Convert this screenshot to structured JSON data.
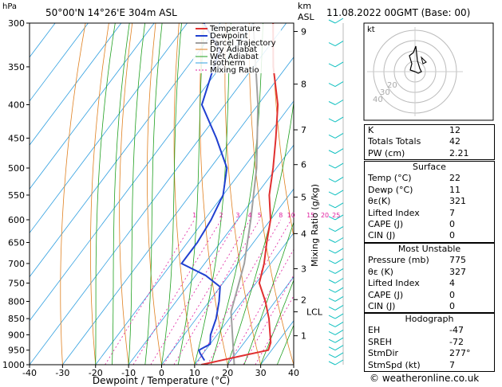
{
  "header": {
    "location": "50°00'N 14°26'E 304m ASL",
    "datetime": "11.08.2022 00GMT (Base: 00)"
  },
  "chart_data": {
    "type": "skew-t",
    "xlabel": "Dewpoint / Temperature (°C)",
    "ylabel_left": "hPa",
    "ylabel_right_top": "km",
    "ylabel_right_top2": "ASL",
    "mixing_ratio_label": "Mixing Ratio (g/kg)",
    "pressure_ticks": [
      300,
      350,
      400,
      450,
      500,
      550,
      600,
      650,
      700,
      750,
      800,
      850,
      900,
      950,
      1000
    ],
    "temp_ticks": [
      -40,
      -30,
      -20,
      -10,
      0,
      10,
      20,
      30,
      40
    ],
    "km_ticks": [
      {
        "label": "9",
        "p": 309
      },
      {
        "label": "8",
        "p": 372
      },
      {
        "label": "7",
        "p": 437
      },
      {
        "label": "6",
        "p": 494
      },
      {
        "label": "5",
        "p": 554
      },
      {
        "label": "4",
        "p": 630
      },
      {
        "label": "3",
        "p": 713
      },
      {
        "label": "2",
        "p": 795
      },
      {
        "label": "1",
        "p": 903
      }
    ],
    "lcl_label": "LCL",
    "lcl_p": 830,
    "mixing_ratio_values": [
      "1",
      "2",
      "3",
      "4",
      "5",
      "8",
      "10",
      "15",
      "20",
      "25"
    ],
    "legend": [
      "Temperature",
      "Dewpoint",
      "Parcel Trajectory",
      "Dry Adiabat",
      "Wet Adiabat",
      "Isotherm",
      "Mixing Ratio"
    ],
    "colors": {
      "temperature": "#e03030",
      "dewpoint": "#2040d0",
      "parcel": "#a0a0a0",
      "dry_adiabat": "#e08020",
      "wet_adiabat": "#20a020",
      "isotherm": "#30a0e0",
      "mixing_ratio": "#e020a0",
      "wind": "#10c0c0"
    },
    "temperature_profile": [
      {
        "p": 1000,
        "x": 12
      },
      {
        "p": 970,
        "x": 22
      },
      {
        "p": 950,
        "x": 29
      },
      {
        "p": 925,
        "x": 28
      },
      {
        "p": 850,
        "x": 22
      },
      {
        "p": 800,
        "x": 17
      },
      {
        "p": 750,
        "x": 11
      },
      {
        "p": 700,
        "x": 8
      },
      {
        "p": 650,
        "x": 4
      },
      {
        "p": 600,
        "x": 0
      },
      {
        "p": 550,
        "x": -6
      },
      {
        "p": 500,
        "x": -11
      },
      {
        "p": 450,
        "x": -17
      },
      {
        "p": 400,
        "x": -24
      },
      {
        "p": 350,
        "x": -34
      },
      {
        "p": 300,
        "x": -44
      }
    ],
    "dewpoint_profile": [
      {
        "p": 985,
        "x": 12
      },
      {
        "p": 960,
        "x": 9
      },
      {
        "p": 950,
        "x": 8
      },
      {
        "p": 930,
        "x": 10
      },
      {
        "p": 900,
        "x": 8
      },
      {
        "p": 850,
        "x": 6
      },
      {
        "p": 800,
        "x": 3
      },
      {
        "p": 760,
        "x": 0
      },
      {
        "p": 730,
        "x": -7
      },
      {
        "p": 700,
        "x": -17
      },
      {
        "p": 650,
        "x": -17
      },
      {
        "p": 600,
        "x": -18
      },
      {
        "p": 550,
        "x": -20
      },
      {
        "p": 500,
        "x": -25
      },
      {
        "p": 450,
        "x": -35
      },
      {
        "p": 400,
        "x": -47
      },
      {
        "p": 350,
        "x": -52
      },
      {
        "p": 330,
        "x": -54
      },
      {
        "p": 300,
        "x": -65
      }
    ],
    "parcel_profile": [
      {
        "p": 1000,
        "x": 22
      },
      {
        "p": 830,
        "x": 9
      },
      {
        "p": 700,
        "x": 2
      },
      {
        "p": 600,
        "x": -6
      },
      {
        "p": 500,
        "x": -16
      },
      {
        "p": 400,
        "x": -30
      },
      {
        "p": 300,
        "x": -50
      }
    ]
  },
  "hodograph": {
    "label": "kt",
    "ring_labels": [
      "20",
      "30",
      "40"
    ]
  },
  "table": {
    "indices": [
      {
        "label": "K",
        "value": "12"
      },
      {
        "label": "Totals Totals",
        "value": "42"
      },
      {
        "label": "PW (cm)",
        "value": "2.21"
      }
    ],
    "surface": {
      "title": "Surface",
      "rows": [
        {
          "label": "Temp (°C)",
          "value": "22"
        },
        {
          "label": "Dewp (°C)",
          "value": "11"
        },
        {
          "label": "θε(K)",
          "value": "321"
        },
        {
          "label": "Lifted Index",
          "value": "7"
        },
        {
          "label": "CAPE (J)",
          "value": "0"
        },
        {
          "label": "CIN (J)",
          "value": "0"
        }
      ]
    },
    "most_unstable": {
      "title": "Most Unstable",
      "rows": [
        {
          "label": "Pressure (mb)",
          "value": "775"
        },
        {
          "label": "θε (K)",
          "value": "327"
        },
        {
          "label": "Lifted Index",
          "value": "4"
        },
        {
          "label": "CAPE (J)",
          "value": "0"
        },
        {
          "label": "CIN (J)",
          "value": "0"
        }
      ]
    },
    "hodograph": {
      "title": "Hodograph",
      "rows": [
        {
          "label": "EH",
          "value": "-47"
        },
        {
          "label": "SREH",
          "value": "-72"
        },
        {
          "label": "StmDir",
          "value": "277°"
        },
        {
          "label": "StmSpd (kt)",
          "value": "7"
        }
      ]
    }
  },
  "watermark": "© weatheronline.co.uk"
}
